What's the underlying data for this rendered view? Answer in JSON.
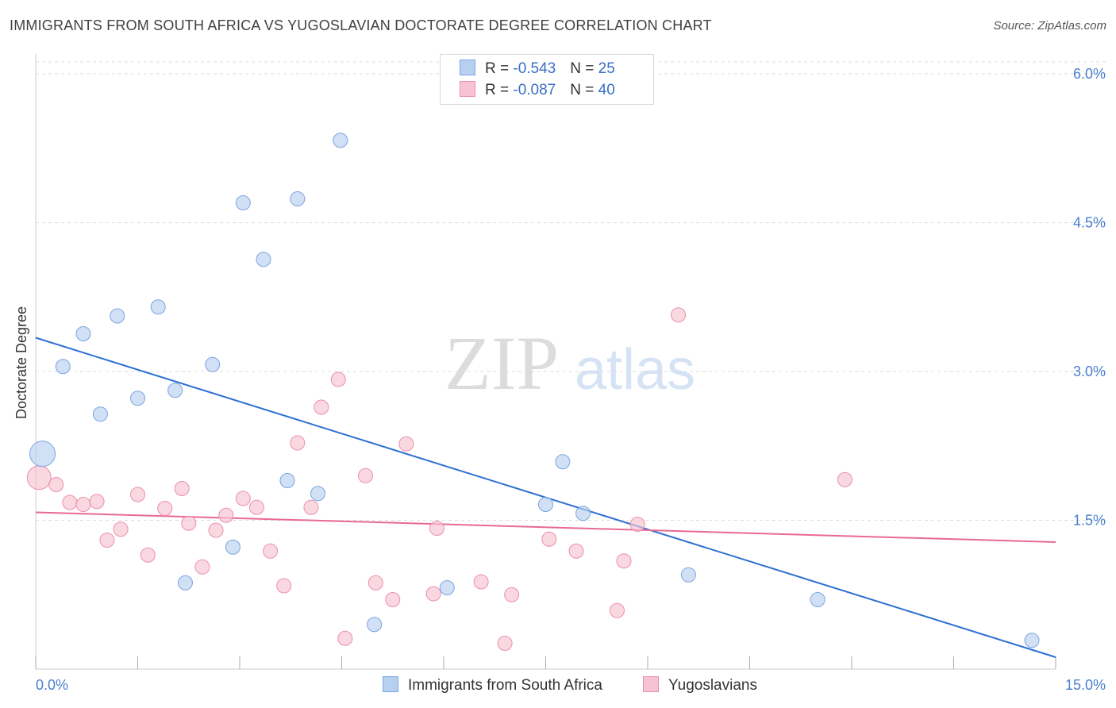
{
  "header": {
    "title": "IMMIGRANTS FROM SOUTH AFRICA VS YUGOSLAVIAN DOCTORATE DEGREE CORRELATION CHART",
    "source": "Source: ZipAtlas.com"
  },
  "legend": {
    "rows": [
      {
        "r_label": "R = ",
        "r_value": "-0.543",
        "n_label": "N = ",
        "n_value": "25"
      },
      {
        "r_label": "R = ",
        "r_value": "-0.087",
        "n_label": "N = ",
        "n_value": "40"
      }
    ]
  },
  "bottom_legend": {
    "series1": "Immigrants from South Africa",
    "series2": "Yugoslavians"
  },
  "watermark": {
    "zip": "ZIP",
    "atlas": "atlas"
  },
  "colors": {
    "blue_fill": "#b8d0f0",
    "blue_stroke": "#7aa5e0",
    "blue_line": "#2d6fd2",
    "pink_fill": "#f7c3d3",
    "pink_stroke": "#eb8fab",
    "pink_line": "#e86a92",
    "tick_label": "#4a7fcf"
  },
  "chart_data": {
    "type": "scatter",
    "title": "IMMIGRANTS FROM SOUTH AFRICA VS YUGOSLAVIAN DOCTORATE DEGREE CORRELATION CHART",
    "xlabel": "",
    "ylabel": "Doctorate Degree",
    "xlim": [
      0,
      15
    ],
    "ylim": [
      0,
      6.2
    ],
    "x_tick_labels": [
      "0.0%",
      "15.0%"
    ],
    "y_ticks": [
      1.5,
      3.0,
      4.5,
      6.0
    ],
    "y_tick_labels": [
      "1.5%",
      "3.0%",
      "4.5%",
      "6.0%"
    ],
    "grid": "horizontal dashed",
    "legend_position": "top-center",
    "series": [
      {
        "name": "Immigrants from South Africa",
        "r": -0.543,
        "n": 25,
        "points": [
          [
            0.1,
            2.17
          ],
          [
            0.4,
            3.05
          ],
          [
            0.7,
            3.38
          ],
          [
            0.95,
            2.57
          ],
          [
            1.2,
            3.56
          ],
          [
            1.5,
            2.73
          ],
          [
            1.8,
            3.65
          ],
          [
            2.05,
            2.81
          ],
          [
            2.2,
            0.87
          ],
          [
            2.6,
            3.07
          ],
          [
            3.05,
            4.7
          ],
          [
            2.9,
            1.23
          ],
          [
            3.35,
            4.13
          ],
          [
            3.7,
            1.9
          ],
          [
            3.85,
            4.74
          ],
          [
            4.15,
            1.77
          ],
          [
            4.48,
            5.33
          ],
          [
            4.98,
            0.45
          ],
          [
            6.05,
            0.82
          ],
          [
            7.5,
            1.66
          ],
          [
            7.75,
            2.09
          ],
          [
            8.05,
            1.57
          ],
          [
            9.6,
            0.95
          ],
          [
            11.5,
            0.7
          ],
          [
            14.65,
            0.29
          ]
        ],
        "trend": {
          "x": [
            0.0,
            15.0
          ],
          "y": [
            3.34,
            0.12
          ]
        }
      },
      {
        "name": "Yugoslavians",
        "r": -0.087,
        "n": 40,
        "points": [
          [
            0.05,
            1.93
          ],
          [
            0.3,
            1.86
          ],
          [
            0.5,
            1.68
          ],
          [
            0.7,
            1.66
          ],
          [
            0.9,
            1.69
          ],
          [
            1.05,
            1.3
          ],
          [
            1.25,
            1.41
          ],
          [
            1.5,
            1.76
          ],
          [
            1.65,
            1.15
          ],
          [
            1.9,
            1.62
          ],
          [
            2.15,
            1.82
          ],
          [
            2.25,
            1.47
          ],
          [
            2.45,
            1.03
          ],
          [
            2.65,
            1.4
          ],
          [
            2.8,
            1.55
          ],
          [
            3.05,
            1.72
          ],
          [
            3.25,
            1.63
          ],
          [
            3.45,
            1.19
          ],
          [
            3.65,
            0.84
          ],
          [
            3.85,
            2.28
          ],
          [
            4.05,
            1.63
          ],
          [
            4.2,
            2.64
          ],
          [
            4.45,
            2.92
          ],
          [
            4.55,
            0.31
          ],
          [
            4.85,
            1.95
          ],
          [
            5.0,
            0.87
          ],
          [
            5.25,
            0.7
          ],
          [
            5.45,
            2.27
          ],
          [
            5.85,
            0.76
          ],
          [
            5.9,
            1.42
          ],
          [
            6.55,
            0.88
          ],
          [
            6.9,
            0.26
          ],
          [
            7.0,
            0.75
          ],
          [
            7.55,
            1.31
          ],
          [
            7.95,
            1.19
          ],
          [
            8.55,
            0.59
          ],
          [
            8.65,
            1.09
          ],
          [
            8.85,
            1.46
          ],
          [
            9.45,
            3.57
          ],
          [
            11.9,
            1.91
          ]
        ],
        "trend": {
          "x": [
            0.0,
            15.0
          ],
          "y": [
            1.58,
            1.28
          ]
        }
      }
    ]
  }
}
